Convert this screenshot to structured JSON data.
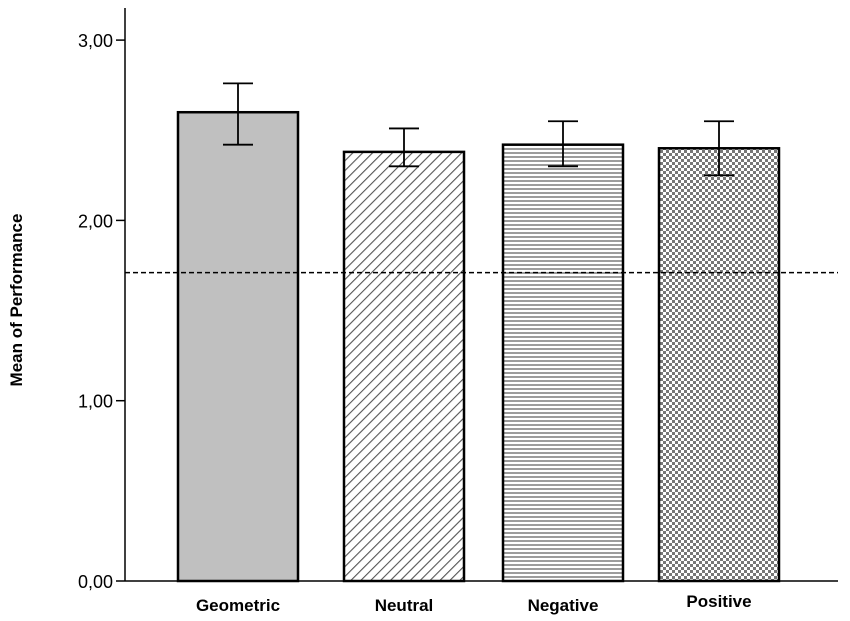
{
  "chart_data": {
    "type": "bar",
    "title": "",
    "xlabel": "",
    "ylabel": "Mean of Performance",
    "ylim": [
      0,
      3.2
    ],
    "yticks": [
      0,
      1,
      2,
      3
    ],
    "ytick_labels": [
      "0,00",
      "1,00",
      "2,00",
      "3,00"
    ],
    "categories": [
      "Geometric",
      "Neutral",
      "Negative",
      "Positive"
    ],
    "values": [
      2.6,
      2.38,
      2.42,
      2.4
    ],
    "error_low": [
      2.42,
      2.3,
      2.3,
      2.25
    ],
    "error_high": [
      2.76,
      2.51,
      2.55,
      2.55
    ],
    "fills": [
      "solid-gray",
      "diagonal-hatch",
      "horizontal-lines",
      "checker-dots"
    ],
    "reference_line": 1.71,
    "grid": false,
    "colors": {
      "bar_fill_gray": "#c0c0c0",
      "stroke": "#000000",
      "pattern_gray": "#555555"
    }
  }
}
